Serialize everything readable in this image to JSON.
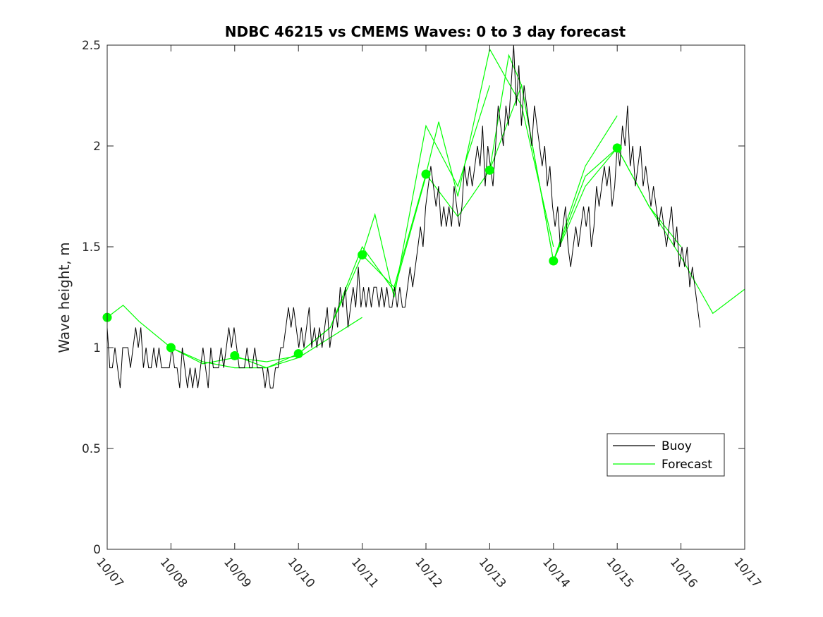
{
  "chart_data": {
    "type": "line",
    "title": "NDBC 46215 vs CMEMS Waves: 0 to 3 day forecast",
    "xlabel": "",
    "ylabel": "Wave height, m",
    "xlim": [
      "10/07",
      "10/17"
    ],
    "ylim": [
      0,
      2.5
    ],
    "xticks": [
      "10/07",
      "10/08",
      "10/09",
      "10/10",
      "10/11",
      "10/12",
      "10/13",
      "10/14",
      "10/15",
      "10/16",
      "10/17"
    ],
    "yticks": [
      "0",
      "0.5",
      "1",
      "1.5",
      "2",
      "2.5"
    ],
    "legend_position": "bottom-right",
    "legend": [
      {
        "label": "Buoy",
        "color": "#000000"
      },
      {
        "label": "Forecast",
        "color": "#00ff00"
      }
    ],
    "series": [
      {
        "name": "Buoy",
        "color": "#000000",
        "x_days_unit": "days after 10/07 00:00",
        "values": [
          1.1,
          0.9,
          0.9,
          1.0,
          0.9,
          0.8,
          1.0,
          1.0,
          1.0,
          0.9,
          1.0,
          1.1,
          1.0,
          1.1,
          0.9,
          1.0,
          0.9,
          0.9,
          1.0,
          0.9,
          1.0,
          0.9,
          0.9,
          0.9,
          0.9,
          1.0,
          0.9,
          0.9,
          0.8,
          1.0,
          0.9,
          0.8,
          0.9,
          0.8,
          0.9,
          0.8,
          0.9,
          1.0,
          0.9,
          0.8,
          1.0,
          0.9,
          0.9,
          0.9,
          1.0,
          0.9,
          1.0,
          1.1,
          1.0,
          1.1,
          1.0,
          0.9,
          0.9,
          0.9,
          1.0,
          0.9,
          0.9,
          1.0,
          0.9,
          0.9,
          0.9,
          0.8,
          0.9,
          0.8,
          0.8,
          0.9,
          0.9,
          1.0,
          1.0,
          1.1,
          1.2,
          1.1,
          1.2,
          1.1,
          1.0,
          1.1,
          1.0,
          1.1,
          1.2,
          1.0,
          1.1,
          1.0,
          1.1,
          1.0,
          1.1,
          1.2,
          1.0,
          1.1,
          1.2,
          1.1,
          1.3,
          1.2,
          1.3,
          1.1,
          1.2,
          1.3,
          1.2,
          1.4,
          1.2,
          1.3,
          1.2,
          1.3,
          1.2,
          1.3,
          1.3,
          1.2,
          1.3,
          1.2,
          1.3,
          1.2,
          1.2,
          1.3,
          1.2,
          1.3,
          1.2,
          1.2,
          1.3,
          1.4,
          1.3,
          1.4,
          1.5,
          1.6,
          1.5,
          1.7,
          1.8,
          1.9,
          1.8,
          1.7,
          1.8,
          1.6,
          1.7,
          1.6,
          1.7,
          1.6,
          1.8,
          1.7,
          1.6,
          1.7,
          1.9,
          1.8,
          1.9,
          1.8,
          1.9,
          2.0,
          1.9,
          2.1,
          1.8,
          2.0,
          1.9,
          1.8,
          2.0,
          2.2,
          2.1,
          2.0,
          2.2,
          2.1,
          2.3,
          2.5,
          2.2,
          2.4,
          2.1,
          2.3,
          2.2,
          2.1,
          2.0,
          2.2,
          2.1,
          2.0,
          1.9,
          2.0,
          1.8,
          1.9,
          1.7,
          1.6,
          1.7,
          1.5,
          1.6,
          1.7,
          1.5,
          1.4,
          1.5,
          1.6,
          1.5,
          1.6,
          1.7,
          1.6,
          1.7,
          1.5,
          1.6,
          1.8,
          1.7,
          1.8,
          1.9,
          1.8,
          1.9,
          1.7,
          1.8,
          2.0,
          1.9,
          2.1,
          2.0,
          2.2,
          1.9,
          2.0,
          1.8,
          1.9,
          2.0,
          1.8,
          1.9,
          1.8,
          1.7,
          1.8,
          1.7,
          1.6,
          1.7,
          1.6,
          1.5,
          1.6,
          1.7,
          1.5,
          1.6,
          1.4,
          1.5,
          1.4,
          1.5,
          1.3,
          1.4,
          1.3,
          1.2,
          1.1
        ]
      },
      {
        "name": "Forecast",
        "color": "#00ff00",
        "x": [
          0.0,
          0.25,
          0.5,
          1.0,
          1.5,
          2.0,
          2.5,
          3.0
        ],
        "values": [
          1.15,
          1.21,
          1.13,
          1.0,
          0.92,
          0.95,
          0.93,
          0.96
        ]
      },
      {
        "name": "Forecast",
        "color": "#00ff00",
        "x": [
          1.0,
          1.5,
          2.0,
          2.5,
          3.0,
          3.5,
          4.0
        ],
        "values": [
          1.0,
          0.93,
          0.9,
          0.9,
          0.95,
          1.05,
          1.15
        ]
      },
      {
        "name": "Forecast",
        "color": "#00ff00",
        "x": [
          2.0,
          2.5,
          3.0,
          3.5,
          4.0,
          4.5,
          5.0
        ],
        "values": [
          0.96,
          0.9,
          0.97,
          1.1,
          1.5,
          1.28,
          1.85
        ]
      },
      {
        "name": "Forecast",
        "color": "#00ff00",
        "x": [
          3.0,
          3.5,
          4.0,
          4.2,
          4.5,
          5.0,
          5.5,
          6.0
        ],
        "values": [
          0.97,
          1.1,
          1.46,
          1.66,
          1.25,
          2.1,
          1.8,
          2.3
        ]
      },
      {
        "name": "Forecast",
        "color": "#00ff00",
        "x": [
          4.0,
          4.5,
          5.0,
          5.2,
          5.5,
          6.0,
          6.5,
          7.0
        ],
        "values": [
          1.46,
          1.3,
          1.86,
          2.12,
          1.75,
          2.48,
          2.2,
          1.5
        ]
      },
      {
        "name": "Forecast",
        "color": "#00ff00",
        "x": [
          5.0,
          5.5,
          6.0,
          6.3,
          6.5,
          7.0,
          7.5,
          8.0
        ],
        "values": [
          1.86,
          1.65,
          1.88,
          2.45,
          2.3,
          1.43,
          1.9,
          2.15
        ]
      },
      {
        "name": "Forecast",
        "color": "#00ff00",
        "x": [
          6.0,
          6.5,
          7.0,
          7.5,
          8.0,
          8.5,
          9.0
        ],
        "values": [
          1.88,
          2.3,
          1.43,
          1.85,
          1.99,
          1.7,
          1.5
        ]
      },
      {
        "name": "Forecast",
        "color": "#00ff00",
        "x": [
          7.0,
          7.5,
          8.0,
          8.5,
          9.0,
          9.5,
          10.0
        ],
        "values": [
          1.43,
          1.8,
          1.99,
          1.7,
          1.45,
          1.17,
          1.29
        ]
      }
    ],
    "markers": {
      "name": "Forecast",
      "color": "#00ff00",
      "x": [
        0,
        1,
        2,
        3,
        4,
        5,
        6,
        7,
        8
      ],
      "values": [
        1.15,
        1.0,
        0.96,
        0.97,
        1.46,
        1.86,
        1.88,
        1.43,
        1.99
      ]
    }
  }
}
